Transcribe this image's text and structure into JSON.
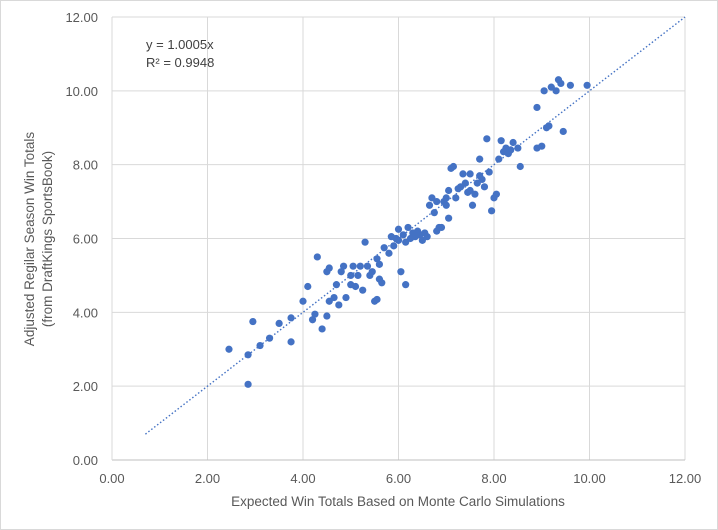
{
  "chart_data": {
    "type": "scatter",
    "xlabel": "Expected Win Totals Based on Monte Carlo Simulations",
    "ylabel_lines": [
      "Adjusted Regilar Season Win Totals",
      "(from DraftKings SportsBook)"
    ],
    "xlim": [
      0,
      12
    ],
    "ylim": [
      0,
      12
    ],
    "x_ticks": [
      "0.00",
      "2.00",
      "4.00",
      "6.00",
      "8.00",
      "10.00",
      "12.00"
    ],
    "y_ticks": [
      "0.00",
      "2.00",
      "4.00",
      "6.00",
      "8.00",
      "10.00",
      "12.00"
    ],
    "grid": true,
    "colors": {
      "point": "#4472c4",
      "trendline": "#4472c4",
      "grid": "#d9d9d9",
      "axis": "#bfbfbf"
    },
    "trendline": {
      "type": "linear-through-origin",
      "slope": 1.0005,
      "x_range": [
        0.7,
        12.0
      ]
    },
    "annotation": {
      "equation": "y = 1.0005x",
      "r_squared": "R² = 0.9948"
    },
    "points": [
      [
        2.45,
        3.0
      ],
      [
        2.85,
        2.05
      ],
      [
        2.85,
        2.85
      ],
      [
        2.95,
        3.75
      ],
      [
        3.1,
        3.1
      ],
      [
        3.3,
        3.3
      ],
      [
        3.5,
        3.7
      ],
      [
        3.75,
        3.85
      ],
      [
        3.75,
        3.2
      ],
      [
        4.0,
        4.3
      ],
      [
        4.1,
        4.7
      ],
      [
        4.2,
        3.8
      ],
      [
        4.25,
        3.95
      ],
      [
        4.3,
        5.5
      ],
      [
        4.4,
        3.55
      ],
      [
        4.5,
        5.1
      ],
      [
        4.5,
        3.9
      ],
      [
        4.55,
        4.3
      ],
      [
        4.55,
        5.2
      ],
      [
        4.65,
        4.4
      ],
      [
        4.7,
        4.75
      ],
      [
        4.75,
        4.2
      ],
      [
        4.8,
        5.1
      ],
      [
        4.85,
        5.25
      ],
      [
        4.9,
        4.4
      ],
      [
        5.0,
        5.0
      ],
      [
        5.0,
        4.75
      ],
      [
        5.05,
        5.25
      ],
      [
        5.1,
        4.7
      ],
      [
        5.15,
        5.0
      ],
      [
        5.2,
        5.25
      ],
      [
        5.25,
        4.6
      ],
      [
        5.3,
        5.9
      ],
      [
        5.35,
        5.25
      ],
      [
        5.4,
        5.0
      ],
      [
        5.45,
        5.1
      ],
      [
        5.5,
        4.3
      ],
      [
        5.55,
        4.35
      ],
      [
        5.55,
        5.45
      ],
      [
        5.6,
        5.3
      ],
      [
        5.6,
        4.9
      ],
      [
        5.65,
        4.8
      ],
      [
        5.7,
        5.75
      ],
      [
        5.8,
        5.6
      ],
      [
        5.85,
        6.05
      ],
      [
        5.9,
        5.8
      ],
      [
        5.95,
        6.0
      ],
      [
        6.0,
        6.25
      ],
      [
        6.0,
        5.95
      ],
      [
        6.05,
        5.1
      ],
      [
        6.1,
        6.1
      ],
      [
        6.15,
        4.75
      ],
      [
        6.15,
        5.9
      ],
      [
        6.2,
        6.3
      ],
      [
        6.25,
        6.0
      ],
      [
        6.3,
        6.15
      ],
      [
        6.35,
        6.05
      ],
      [
        6.4,
        6.2
      ],
      [
        6.45,
        6.1
      ],
      [
        6.5,
        5.95
      ],
      [
        6.55,
        6.15
      ],
      [
        6.6,
        6.05
      ],
      [
        6.65,
        6.9
      ],
      [
        6.7,
        7.1
      ],
      [
        6.75,
        6.7
      ],
      [
        6.8,
        6.2
      ],
      [
        6.8,
        7.0
      ],
      [
        6.85,
        6.3
      ],
      [
        6.9,
        6.3
      ],
      [
        6.95,
        7.0
      ],
      [
        7.0,
        6.9
      ],
      [
        7.0,
        7.1
      ],
      [
        7.05,
        7.3
      ],
      [
        7.05,
        6.55
      ],
      [
        7.1,
        7.9
      ],
      [
        7.15,
        7.95
      ],
      [
        7.2,
        7.1
      ],
      [
        7.25,
        7.35
      ],
      [
        7.3,
        7.4
      ],
      [
        7.35,
        7.75
      ],
      [
        7.4,
        7.5
      ],
      [
        7.45,
        7.25
      ],
      [
        7.5,
        7.75
      ],
      [
        7.5,
        7.3
      ],
      [
        7.55,
        6.9
      ],
      [
        7.6,
        7.2
      ],
      [
        7.65,
        7.5
      ],
      [
        7.7,
        7.7
      ],
      [
        7.7,
        8.15
      ],
      [
        7.75,
        7.6
      ],
      [
        7.8,
        7.4
      ],
      [
        7.85,
        8.7
      ],
      [
        7.9,
        7.8
      ],
      [
        7.95,
        6.75
      ],
      [
        8.0,
        7.1
      ],
      [
        8.05,
        7.2
      ],
      [
        8.1,
        8.15
      ],
      [
        8.15,
        8.65
      ],
      [
        8.2,
        8.35
      ],
      [
        8.25,
        8.45
      ],
      [
        8.3,
        8.3
      ],
      [
        8.35,
        8.4
      ],
      [
        8.4,
        8.6
      ],
      [
        8.5,
        8.45
      ],
      [
        8.55,
        7.95
      ],
      [
        8.9,
        9.55
      ],
      [
        8.9,
        8.45
      ],
      [
        9.0,
        8.5
      ],
      [
        9.05,
        10.0
      ],
      [
        9.1,
        9.0
      ],
      [
        9.15,
        9.05
      ],
      [
        9.2,
        10.1
      ],
      [
        9.3,
        10.0
      ],
      [
        9.35,
        10.3
      ],
      [
        9.4,
        10.2
      ],
      [
        9.45,
        8.9
      ],
      [
        9.6,
        10.15
      ],
      [
        9.95,
        10.15
      ]
    ]
  }
}
